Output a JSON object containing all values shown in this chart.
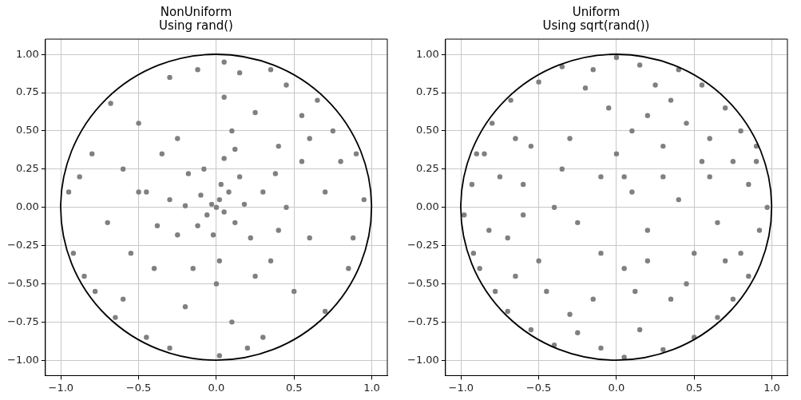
{
  "chart_data": [
    {
      "type": "scatter",
      "title": "NonUniform\nUsing rand()",
      "xlim": [
        -1.1,
        1.1
      ],
      "ylim": [
        -1.1,
        1.1
      ],
      "xticks": [
        {
          "value": -1,
          "label": "−1.0"
        },
        {
          "value": -0.5,
          "label": "−0.5"
        },
        {
          "value": 0,
          "label": "0.0"
        },
        {
          "value": 0.5,
          "label": "0.5"
        },
        {
          "value": 1,
          "label": "1.0"
        }
      ],
      "yticks": [
        {
          "value": -1,
          "label": "−1.00"
        },
        {
          "value": -0.75,
          "label": "−0.75"
        },
        {
          "value": -0.5,
          "label": "−0.50"
        },
        {
          "value": -0.25,
          "label": "−0.25"
        },
        {
          "value": 0,
          "label": "0.00"
        },
        {
          "value": 0.25,
          "label": "0.25"
        },
        {
          "value": 0.5,
          "label": "0.50"
        },
        {
          "value": 0.75,
          "label": "0.75"
        },
        {
          "value": 1,
          "label": "1.00"
        }
      ],
      "grid": true,
      "legend": false,
      "series": [
        {
          "type": "scatter",
          "marker": "circle",
          "color": "#808080",
          "x": [
            0,
            0.02,
            -0.03,
            0.05,
            -0.06,
            0.08,
            -0.1,
            0.12,
            -0.12,
            0.03,
            -0.02,
            0.18,
            -0.2,
            0.15,
            -0.18,
            0.22,
            -0.25,
            0.3,
            -0.3,
            0.05,
            0.02,
            0.35,
            -0.35,
            0.4,
            -0.4,
            0.45,
            -0.5,
            0.1,
            0,
            0.55,
            -0.55,
            0.6,
            -0.6,
            0.25,
            -0.2,
            0.7,
            -0.7,
            0.05,
            0.1,
            0.5,
            -0.5,
            0.55,
            -0.6,
            0.8,
            -0.8,
            0.3,
            -0.3,
            0.85,
            -0.85,
            0.45,
            -0.45,
            0.95,
            -0.95,
            0.05,
            0.02,
            0.65,
            -0.68,
            0.7,
            -0.65,
            0.9,
            -0.92,
            0.35,
            -0.3,
            0.75,
            -0.78,
            0.88,
            -0.88,
            0.15,
            -0.12,
            0.2,
            -0.45,
            0.4,
            0.25,
            -0.25,
            0.6,
            -0.15,
            0.12,
            -0.38,
            0.38,
            -0.08
          ],
          "values": [
            0,
            0.05,
            0.02,
            -0.03,
            -0.05,
            0.1,
            0.08,
            -0.1,
            -0.12,
            0.15,
            -0.18,
            0.02,
            0.01,
            0.2,
            0.22,
            -0.2,
            -0.18,
            0.1,
            0.05,
            0.32,
            -0.35,
            -0.35,
            0.35,
            0.4,
            -0.4,
            0,
            0.1,
            0.5,
            -0.5,
            0.3,
            -0.3,
            -0.2,
            0.25,
            0.62,
            -0.65,
            0.1,
            -0.1,
            0.72,
            -0.75,
            -0.55,
            0.55,
            0.6,
            -0.6,
            0.3,
            0.35,
            -0.85,
            0.85,
            -0.4,
            -0.45,
            0.8,
            -0.85,
            0.05,
            0.1,
            0.95,
            -0.97,
            0.7,
            0.68,
            -0.68,
            -0.72,
            0.35,
            -0.3,
            0.9,
            -0.92,
            0.5,
            -0.55,
            -0.2,
            0.2,
            0.88,
            0.9,
            -0.92,
            0.1,
            -0.15,
            -0.45,
            0.45,
            0.45,
            -0.4,
            0.38,
            -0.12,
            0.22,
            0.25
          ]
        }
      ]
    },
    {
      "type": "scatter",
      "title": "Uniform\nUsing sqrt(rand())",
      "xlim": [
        -1.1,
        1.1
      ],
      "ylim": [
        -1.1,
        1.1
      ],
      "xticks": [
        {
          "value": -1,
          "label": "−1.0"
        },
        {
          "value": -0.5,
          "label": "−0.5"
        },
        {
          "value": 0,
          "label": "0.0"
        },
        {
          "value": 0.5,
          "label": "0.5"
        },
        {
          "value": 1,
          "label": "1.0"
        }
      ],
      "yticks": [
        {
          "value": -1,
          "label": "−1.00"
        },
        {
          "value": -0.75,
          "label": "−0.75"
        },
        {
          "value": -0.5,
          "label": "−0.50"
        },
        {
          "value": -0.25,
          "label": "−0.25"
        },
        {
          "value": 0,
          "label": "0.00"
        },
        {
          "value": 0.25,
          "label": "0.25"
        },
        {
          "value": 0.5,
          "label": "0.50"
        },
        {
          "value": 0.75,
          "label": "0.75"
        },
        {
          "value": 1,
          "label": "1.00"
        }
      ],
      "grid": true,
      "legend": false,
      "series": [
        {
          "type": "scatter",
          "marker": "circle",
          "color": "#808080",
          "x": [
            0.9,
            -0.9,
            0.85,
            -0.88,
            0.4,
            -0.35,
            0.3,
            -0.4,
            0.97,
            -0.98,
            0,
            0.05,
            0.7,
            -0.68,
            0.65,
            -0.7,
            0.6,
            -0.6,
            0.2,
            -0.15,
            0.5,
            -0.5,
            0.3,
            -0.3,
            0.8,
            -0.8,
            0.75,
            -0.78,
            0.55,
            -0.5,
            0.5,
            -0.55,
            0.1,
            -0.1,
            0.2,
            -0.25,
            0.4,
            -0.4,
            0,
            0.05,
            0.65,
            -0.7,
            0.25,
            -0.2,
            0.15,
            -0.25,
            0.92,
            -0.93,
            0.85,
            -0.82,
            0.35,
            -0.45,
            0.45,
            -0.55,
            0.6,
            -0.65,
            0.7,
            -0.65,
            0.1,
            -0.05,
            0.12,
            -0.1,
            0.3,
            -0.35,
            0.45,
            -0.15,
            0.15,
            -0.1,
            0.2,
            0.8,
            -0.85,
            0.9,
            -0.92,
            0.55,
            -0.6,
            0.35,
            -0.3,
            0.75,
            -0.75,
            0.05
          ],
          "values": [
            0.3,
            0.35,
            -0.45,
            -0.4,
            0.9,
            0.92,
            -0.93,
            -0.9,
            0,
            -0.05,
            0.98,
            -0.98,
            0.65,
            0.7,
            -0.72,
            -0.68,
            0.2,
            0.15,
            0.6,
            -0.6,
            -0.3,
            -0.35,
            0.4,
            0.45,
            0.5,
            0.55,
            -0.6,
            -0.55,
            0.8,
            0.82,
            -0.85,
            -0.8,
            0.1,
            0.2,
            -0.15,
            -0.1,
            0.05,
            0,
            0.35,
            -0.4,
            -0.1,
            -0.2,
            0.8,
            0.78,
            -0.8,
            -0.82,
            -0.15,
            0.15,
            0.15,
            -0.15,
            -0.6,
            -0.55,
            0.55,
            0.4,
            0.45,
            0.45,
            -0.35,
            -0.45,
            0.5,
            0.65,
            -0.55,
            -0.3,
            0.2,
            0.25,
            -0.5,
            0.9,
            0.93,
            -0.92,
            -0.35,
            -0.3,
            0.35,
            0.4,
            -0.3,
            0.3,
            -0.05,
            0.7,
            -0.7,
            0.3,
            0.2,
            0.2
          ]
        }
      ]
    }
  ]
}
